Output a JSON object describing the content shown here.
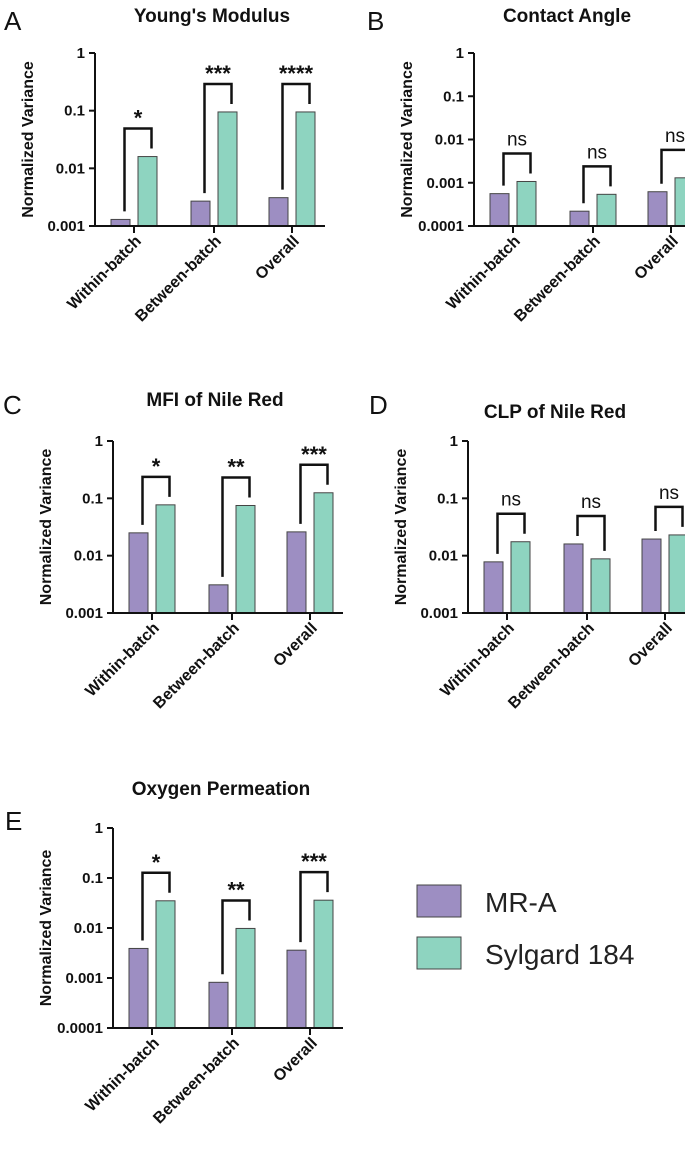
{
  "colors": {
    "mr_a": "#9d8ec2",
    "sylgard": "#8ed4c0"
  },
  "legend": [
    {
      "name": "MR-A",
      "color": "#9d8ec2"
    },
    {
      "name": "Sylgard 184",
      "color": "#8ed4c0"
    }
  ],
  "chart_data": [
    {
      "letter": "A",
      "type": "bar",
      "title": "Young's Modulus",
      "ylabel": "Normalized Variance",
      "yscale": "log",
      "ylim": [
        0.001,
        1
      ],
      "yticks": [
        "0.001",
        "0.01",
        "0.1",
        "1"
      ],
      "categories": [
        "Within-batch",
        "Between-batch",
        "Overall"
      ],
      "series": [
        {
          "name": "MR-A",
          "values": [
            0.0013,
            0.0027,
            0.0031
          ]
        },
        {
          "name": "Sylgard 184",
          "values": [
            0.016,
            0.095,
            0.095
          ]
        }
      ],
      "significance": [
        "*",
        "***",
        "****"
      ]
    },
    {
      "letter": "B",
      "type": "bar",
      "title": "Contact Angle",
      "ylabel": "Normalized Variance",
      "yscale": "log",
      "ylim": [
        0.0001,
        1
      ],
      "yticks": [
        "0.0001",
        "0.001",
        "0.01",
        "0.1",
        "1"
      ],
      "categories": [
        "Within-batch",
        "Between-batch",
        "Overall"
      ],
      "series": [
        {
          "name": "MR-A",
          "values": [
            0.00056,
            0.00022,
            0.00062
          ]
        },
        {
          "name": "Sylgard 184",
          "values": [
            0.00107,
            0.00054,
            0.0013
          ]
        }
      ],
      "significance": [
        "ns",
        "ns",
        "ns"
      ]
    },
    {
      "letter": "C",
      "type": "bar",
      "title": "MFI of Nile Red",
      "ylabel": "Normalized Variance",
      "yscale": "log",
      "ylim": [
        0.001,
        1
      ],
      "yticks": [
        "0.001",
        "0.01",
        "0.1",
        "1"
      ],
      "categories": [
        "Within-batch",
        "Between-batch",
        "Overall"
      ],
      "series": [
        {
          "name": "MR-A",
          "values": [
            0.025,
            0.0031,
            0.026
          ]
        },
        {
          "name": "Sylgard 184",
          "values": [
            0.077,
            0.075,
            0.125
          ]
        }
      ],
      "significance": [
        "*",
        "**",
        "***"
      ]
    },
    {
      "letter": "D",
      "type": "bar",
      "title": "CLP of Nile Red",
      "ylabel": "Normalized Variance",
      "yscale": "log",
      "ylim": [
        0.001,
        1
      ],
      "yticks": [
        "0.001",
        "0.01",
        "0.1",
        "1"
      ],
      "categories": [
        "Within-batch",
        "Between-batch",
        "Overall"
      ],
      "series": [
        {
          "name": "MR-A",
          "values": [
            0.0078,
            0.016,
            0.0195
          ]
        },
        {
          "name": "Sylgard 184",
          "values": [
            0.0175,
            0.0088,
            0.023
          ]
        }
      ],
      "significance": [
        "ns",
        "ns",
        "ns"
      ]
    },
    {
      "letter": "E",
      "type": "bar",
      "title": "Oxygen Permeation",
      "ylabel": "Normalized Variance",
      "yscale": "log",
      "ylim": [
        0.0001,
        1
      ],
      "yticks": [
        "0.0001",
        "0.001",
        "0.01",
        "0.1",
        "1"
      ],
      "categories": [
        "Within-batch",
        "Between-batch",
        "Overall"
      ],
      "series": [
        {
          "name": "MR-A",
          "values": [
            0.0039,
            0.00082,
            0.0036
          ]
        },
        {
          "name": "Sylgard 184",
          "values": [
            0.035,
            0.0098,
            0.036
          ]
        }
      ],
      "significance": [
        "*",
        "**",
        "***"
      ]
    }
  ]
}
